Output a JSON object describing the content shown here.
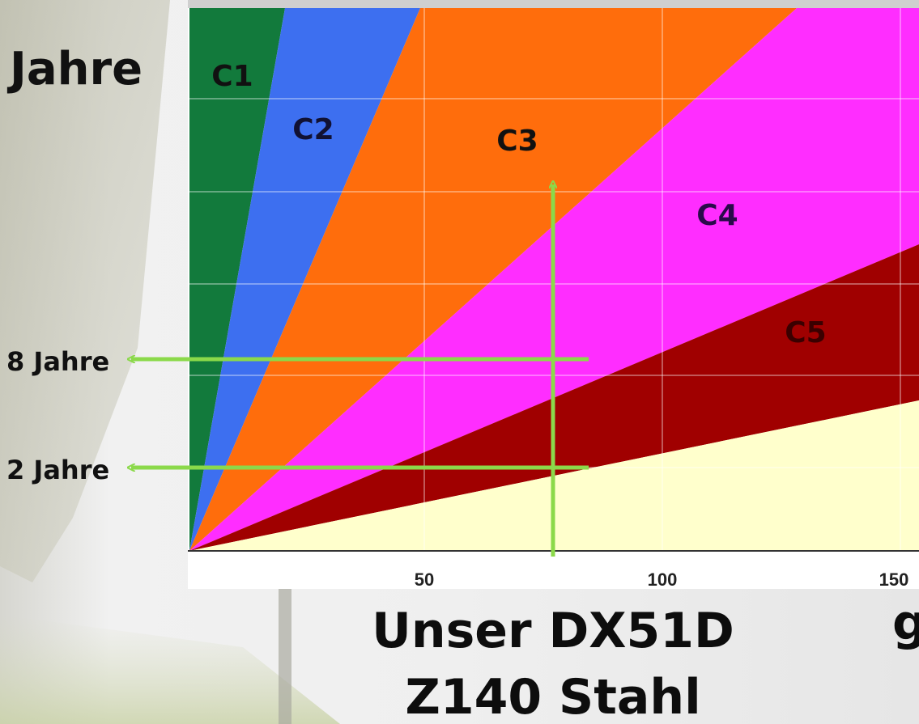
{
  "chart_data": {
    "type": "area",
    "title": "",
    "ylabel": "Jahre",
    "xlabel": "",
    "x_ticks": [
      "50",
      "100",
      "150"
    ],
    "xlim": [
      0,
      150
    ],
    "grid": true,
    "zones": [
      {
        "name": "C1",
        "color": "#127a3c",
        "label_color": "#111111"
      },
      {
        "name": "C2",
        "color": "#3d6ff0",
        "label_color": "#111133"
      },
      {
        "name": "C3",
        "color": "#ff6d0c",
        "label_color": "#111111"
      },
      {
        "name": "C4",
        "color": "#ff2dff",
        "label_color": "#2a0a4a"
      },
      {
        "name": "C5",
        "color": "#a00000",
        "label_color": "#3a0000"
      },
      {
        "name": "",
        "color": "#ffffcc",
        "label_color": "#000000"
      }
    ],
    "annotations": [
      {
        "label": "8 Jahre"
      },
      {
        "label": "2 Jahre"
      }
    ],
    "arrow_color": "#8bd94a"
  },
  "caption": {
    "line1": "Unser DX51D",
    "line2": "Z140 Stahl",
    "right_partial": "g"
  }
}
